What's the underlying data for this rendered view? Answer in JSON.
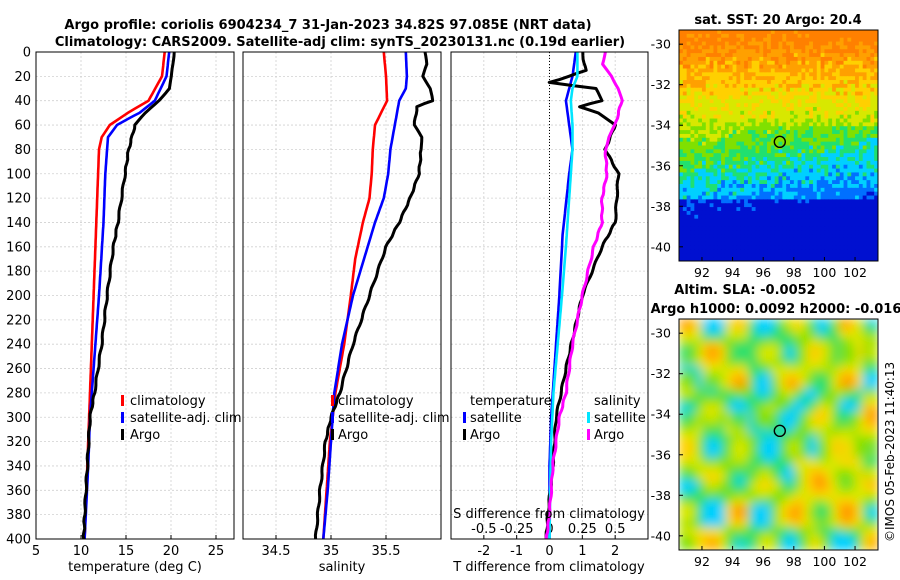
{
  "header": {
    "title1": "Argo profile: coriolis 6904234_7 31-Jan-2023 34.82S 97.085E (NRT data)",
    "title2": "Climatology: CARS2009. Satellite-adj clim: synTS_20230131.nc (0.19d earlier)"
  },
  "watermark": "©IMOS 05-Feb-2023 11:40:13",
  "colors": {
    "climatology": "#ff0000",
    "satellite": "#0000ff",
    "argo": "#000000",
    "salinity_sat": "#00e5ff",
    "salinity_argo": "#ff00ff"
  },
  "chart_data": [
    {
      "id": "temperature",
      "type": "line",
      "xlabel": "temperature (deg C)",
      "ylabel": "",
      "xlim": [
        5,
        27
      ],
      "ylim": [
        400,
        0
      ],
      "xticks": [
        5,
        10,
        15,
        20,
        25
      ],
      "yticks": [
        0,
        20,
        40,
        60,
        80,
        100,
        120,
        140,
        160,
        180,
        200,
        220,
        240,
        260,
        280,
        300,
        320,
        340,
        360,
        380,
        400
      ],
      "grid": true,
      "legend": [
        "climatology",
        "satellite-adj. clim",
        "Argo"
      ],
      "series": [
        {
          "name": "climatology",
          "depth": [
            0,
            20,
            40,
            50,
            60,
            70,
            80,
            100,
            140,
            200,
            260,
            300,
            340,
            400
          ],
          "values": [
            19.3,
            19.0,
            17.5,
            15.2,
            13.2,
            12.3,
            12.0,
            11.9,
            11.7,
            11.4,
            11.1,
            10.9,
            10.7,
            10.4
          ]
        },
        {
          "name": "satellite-adj. clim",
          "depth": [
            0,
            20,
            40,
            50,
            55,
            60,
            70,
            80,
            100,
            140,
            200,
            260,
            300,
            340,
            400
          ],
          "values": [
            19.8,
            19.5,
            18.2,
            16.5,
            15.2,
            14.0,
            13.0,
            12.9,
            12.7,
            12.5,
            12.0,
            11.4,
            11.0,
            10.8,
            10.4
          ]
        },
        {
          "name": "Argo",
          "depth": [
            0,
            10,
            20,
            30,
            40,
            50,
            60,
            80,
            100,
            140,
            160,
            200,
            240,
            280,
            300,
            340,
            380,
            400
          ],
          "values": [
            20.3,
            20.2,
            20.1,
            19.8,
            18.6,
            17.2,
            16.0,
            15.3,
            14.9,
            14.1,
            13.6,
            12.9,
            12.3,
            11.5,
            11.0,
            10.7,
            10.4,
            10.3
          ]
        }
      ]
    },
    {
      "id": "salinity",
      "type": "line",
      "xlabel": "salinity",
      "xlim": [
        34.2,
        36.0
      ],
      "ylim": [
        400,
        0
      ],
      "xticks": [
        34.5,
        35,
        35.5
      ],
      "grid": true,
      "legend": [
        "climatology",
        "satellite-adj. clim",
        "Argo"
      ],
      "series": [
        {
          "name": "climatology",
          "depth": [
            0,
            20,
            40,
            60,
            80,
            100,
            120,
            140,
            170,
            200,
            240,
            280,
            320,
            360,
            400
          ],
          "values": [
            35.48,
            35.5,
            35.51,
            35.4,
            35.38,
            35.37,
            35.35,
            35.29,
            35.22,
            35.18,
            35.12,
            35.04,
            34.99,
            34.96,
            34.93
          ]
        },
        {
          "name": "satellite-adj. clim",
          "depth": [
            0,
            20,
            30,
            40,
            60,
            80,
            100,
            120,
            140,
            170,
            200,
            240,
            280,
            320,
            360,
            400
          ],
          "values": [
            35.68,
            35.69,
            35.68,
            35.62,
            35.58,
            35.54,
            35.52,
            35.48,
            35.4,
            35.3,
            35.2,
            35.1,
            35.03,
            35.0,
            34.97,
            34.93
          ]
        },
        {
          "name": "Argo",
          "depth": [
            0,
            10,
            20,
            30,
            40,
            45,
            60,
            70,
            80,
            100,
            120,
            140,
            160,
            200,
            240,
            280,
            300,
            320,
            360,
            400
          ],
          "values": [
            35.85,
            35.87,
            35.84,
            35.9,
            35.92,
            35.78,
            35.76,
            35.82,
            35.82,
            35.8,
            35.72,
            35.62,
            35.5,
            35.35,
            35.2,
            35.08,
            35.0,
            34.95,
            34.9,
            34.86
          ]
        }
      ]
    },
    {
      "id": "difference",
      "type": "line",
      "xlabel": "T difference from climatology",
      "xlabel2": "S difference from climatology",
      "xlim": [
        -3,
        3
      ],
      "ylim": [
        400,
        0
      ],
      "xticks": [
        -2,
        -1,
        0,
        1,
        2
      ],
      "xticks2_labels": [
        "-0.5",
        "-0.25",
        "0",
        "0.25",
        "0.5"
      ],
      "grid": true,
      "legend_temperature": {
        "title": "temperature",
        "items": [
          "satellite",
          "Argo"
        ]
      },
      "legend_salinity": {
        "title": "salinity",
        "items": [
          "satellite",
          "Argo"
        ]
      },
      "series": [
        {
          "name": "temperature satellite",
          "depth": [
            0,
            20,
            40,
            60,
            80,
            100,
            150,
            200,
            260,
            300,
            340,
            400
          ],
          "values": [
            0.8,
            0.7,
            0.5,
            0.6,
            0.7,
            0.6,
            0.4,
            0.3,
            0.15,
            0.05,
            0.0,
            0.0
          ]
        },
        {
          "name": "temperature Argo",
          "depth": [
            0,
            15,
            20,
            25,
            30,
            40,
            45,
            50,
            60,
            80,
            100,
            140,
            160,
            200,
            260,
            300,
            340,
            380,
            400
          ],
          "values": [
            1.0,
            1.1,
            0.6,
            0.0,
            1.4,
            1.6,
            0.9,
            1.5,
            2.0,
            1.7,
            2.1,
            2.0,
            1.6,
            1.0,
            0.5,
            0.2,
            0.1,
            -0.05,
            -0.1
          ]
        },
        {
          "name": "salinity satellite",
          "depth": [
            0,
            20,
            30,
            40,
            60,
            80,
            100,
            120,
            160,
            200,
            240,
            280,
            320,
            360,
            400
          ],
          "values": [
            0.85,
            0.85,
            0.7,
            0.65,
            0.7,
            0.7,
            0.65,
            0.6,
            0.5,
            0.38,
            0.25,
            0.12,
            0.05,
            0.02,
            0.0
          ]
        },
        {
          "name": "salinity Argo",
          "depth": [
            0,
            10,
            20,
            30,
            40,
            60,
            70,
            80,
            100,
            120,
            140,
            160,
            200,
            240,
            280,
            300,
            340,
            380,
            400
          ],
          "values": [
            1.7,
            1.6,
            1.9,
            2.1,
            2.2,
            2.0,
            1.8,
            1.7,
            1.75,
            1.6,
            1.6,
            1.35,
            1.0,
            0.7,
            0.5,
            0.3,
            0.1,
            0.0,
            -0.1
          ]
        }
      ]
    },
    {
      "id": "sst_map",
      "type": "heatmap",
      "title": "sat. SST: 20 Argo: 20.4",
      "xlim": [
        90.5,
        103.5
      ],
      "ylim": [
        -40.7,
        -29.3
      ],
      "xticks": [
        92,
        94,
        96,
        98,
        100,
        102
      ],
      "yticks": [
        -30,
        -32,
        -34,
        -36,
        -38,
        -40
      ],
      "marker": {
        "lon": 97.085,
        "lat": -34.82
      }
    },
    {
      "id": "sla_map",
      "type": "heatmap",
      "title": "Altim. SLA: -0.0052",
      "subtitle": "Argo h1000: 0.0092 h2000: -0.016",
      "xlim": [
        90.5,
        103.5
      ],
      "ylim": [
        -40.7,
        -29.3
      ],
      "xticks": [
        92,
        94,
        96,
        98,
        100,
        102
      ],
      "yticks": [
        -30,
        -32,
        -34,
        -36,
        -38,
        -40
      ],
      "marker": {
        "lon": 97.085,
        "lat": -34.82
      }
    }
  ]
}
